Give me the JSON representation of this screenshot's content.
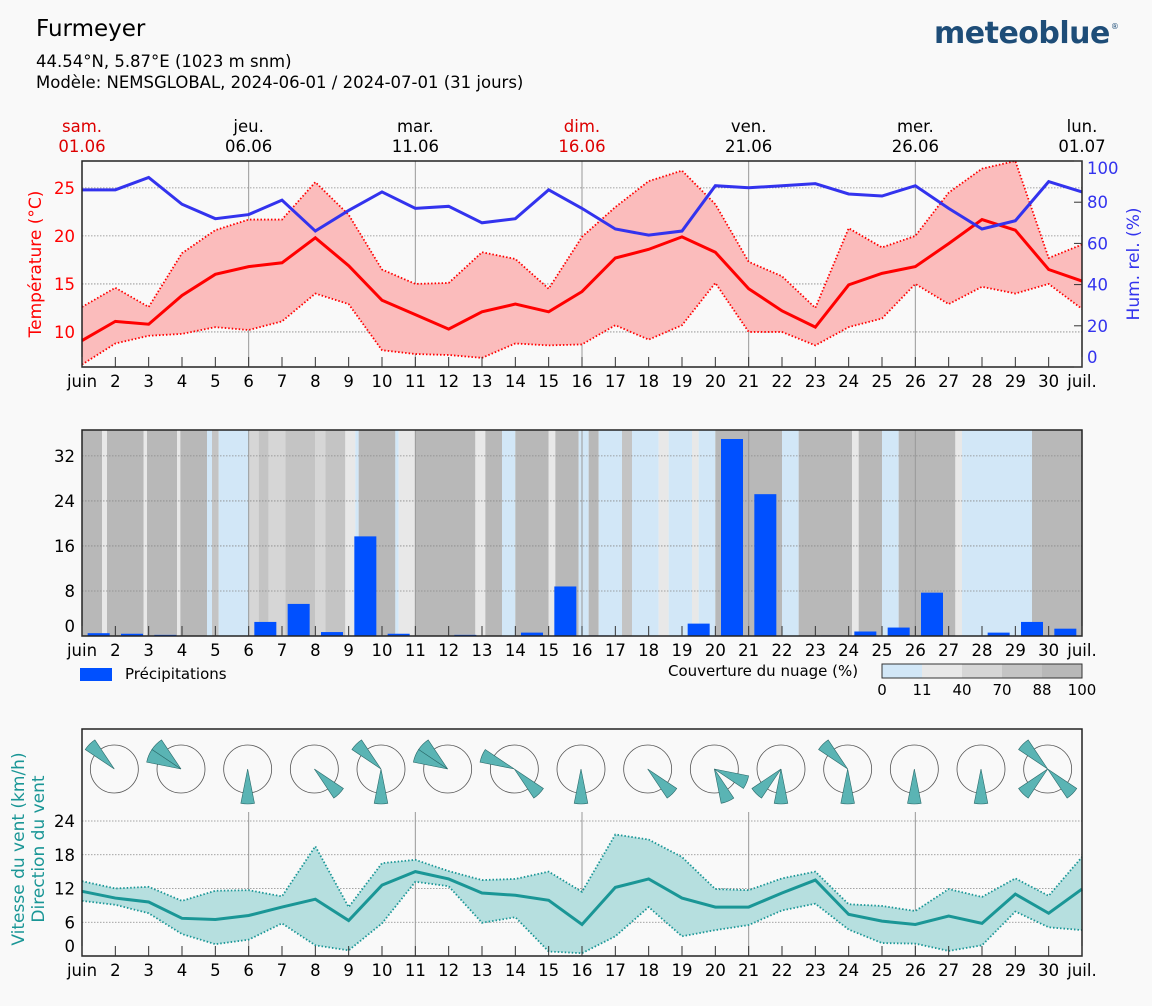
{
  "header": {
    "title": "Furmeyer",
    "coords": "44.54°N, 5.87°E (1023 m snm)",
    "model": "Modèle: NEMSGLOBAL, 2024-06-01 / 2024-07-01 (31 jours)",
    "logo": "meteoblue",
    "logo_mark": "®"
  },
  "colors": {
    "temp": "#ff0000",
    "temp_band": "#fbbcbc",
    "humidity": "#3333ee",
    "precip": "#0050ff",
    "wind": "#1a9696",
    "wind_band": "#b6dfdf",
    "wind_rose": "#5ab4b4",
    "weekend": "#dd0000",
    "cloud_classes": [
      "#d2e7f7",
      "#e8e8e8",
      "#d6d6d6",
      "#c4c4c4",
      "#b8b8b8"
    ]
  },
  "top_dates": [
    {
      "weekday": "sam.",
      "date": "01.06",
      "day": 1,
      "weekend": true
    },
    {
      "weekday": "jeu.",
      "date": "06.06",
      "day": 6,
      "weekend": false
    },
    {
      "weekday": "mar.",
      "date": "11.06",
      "day": 11,
      "weekend": false
    },
    {
      "weekday": "dim.",
      "date": "16.06",
      "day": 16,
      "weekend": true
    },
    {
      "weekday": "ven.",
      "date": "21.06",
      "day": 21,
      "weekend": false
    },
    {
      "weekday": "mer.",
      "date": "26.06",
      "day": 26,
      "weekend": false
    },
    {
      "weekday": "lun.",
      "date": "01.07",
      "day": 31,
      "weekend": false
    }
  ],
  "legends": {
    "precip": "Précipitations",
    "cloud": "Couverture du nuage (%)",
    "cloud_ticks": [
      "0",
      "11",
      "40",
      "70",
      "88",
      "100"
    ]
  },
  "chart_data": [
    {
      "type": "line",
      "title": "Température et humidité",
      "x_tick_labels": [
        "juin",
        "2",
        "3",
        "4",
        "5",
        "6",
        "7",
        "8",
        "9",
        "10",
        "11",
        "12",
        "13",
        "14",
        "15",
        "16",
        "17",
        "18",
        "19",
        "20",
        "21",
        "22",
        "23",
        "24",
        "25",
        "26",
        "27",
        "28",
        "29",
        "30",
        "juil."
      ],
      "x": [
        1,
        2,
        3,
        4,
        5,
        6,
        7,
        8,
        9,
        10,
        11,
        12,
        13,
        14,
        15,
        16,
        17,
        18,
        19,
        20,
        21,
        22,
        23,
        24,
        25,
        26,
        27,
        28,
        29,
        30,
        31
      ],
      "ylabel": "Température (°C)",
      "ylabel_right": "Hum. rel. (%)",
      "ylim": [
        6.35,
        27.8
      ],
      "ylim_right": [
        0,
        100
      ],
      "yticks": [
        10,
        15,
        20,
        25
      ],
      "yticks_right": [
        0,
        20,
        40,
        60,
        80,
        100
      ],
      "grid": true,
      "series": [
        {
          "name": "Température moyenne",
          "axis": "left",
          "values": [
            9.1,
            11.1,
            10.8,
            13.8,
            16.0,
            16.8,
            17.2,
            19.8,
            16.9,
            13.3,
            11.8,
            10.3,
            12.1,
            12.9,
            12.1,
            14.2,
            17.7,
            18.6,
            19.9,
            18.3,
            14.5,
            12.2,
            10.5,
            14.9,
            16.1,
            16.8,
            19.2,
            21.7,
            20.6,
            16.5,
            15.3
          ]
        },
        {
          "name": "Température max",
          "axis": "left",
          "values": [
            12.6,
            14.6,
            12.6,
            18.2,
            20.6,
            21.7,
            21.7,
            25.6,
            22.2,
            16.5,
            15.0,
            15.1,
            18.3,
            17.6,
            14.5,
            19.9,
            23.0,
            25.7,
            26.8,
            23.3,
            17.3,
            15.8,
            12.5,
            20.8,
            18.8,
            20.0,
            24.5,
            27.0,
            27.8,
            17.7,
            19.1
          ]
        },
        {
          "name": "Température min",
          "axis": "left",
          "values": [
            6.6,
            8.8,
            9.6,
            9.8,
            10.5,
            10.2,
            11.1,
            14.0,
            12.9,
            8.1,
            7.7,
            7.6,
            7.3,
            8.8,
            8.6,
            8.7,
            10.7,
            9.2,
            10.7,
            15.1,
            10.0,
            10.0,
            8.6,
            10.5,
            11.4,
            15.0,
            12.9,
            14.7,
            14.0,
            15.0,
            12.4
          ]
        },
        {
          "name": "Humidité relative",
          "axis": "right",
          "values": [
            86,
            86,
            92,
            79,
            72,
            74,
            81,
            66,
            76,
            85,
            77,
            78,
            70,
            72,
            86,
            77,
            67,
            64,
            66,
            88,
            87,
            88,
            89,
            84,
            83,
            88,
            77,
            67,
            71,
            90,
            85
          ]
        }
      ]
    },
    {
      "type": "bar",
      "title": "Précipitations et couverture nuageuse",
      "x_tick_labels": [
        "juin",
        "2",
        "3",
        "4",
        "5",
        "6",
        "7",
        "8",
        "9",
        "10",
        "11",
        "12",
        "13",
        "14",
        "15",
        "16",
        "17",
        "18",
        "19",
        "20",
        "21",
        "22",
        "23",
        "24",
        "25",
        "26",
        "27",
        "28",
        "29",
        "30",
        "juil."
      ],
      "categories": [
        1,
        2,
        3,
        4,
        5,
        6,
        7,
        8,
        9,
        10,
        11,
        12,
        13,
        14,
        15,
        16,
        17,
        18,
        19,
        20,
        21,
        22,
        23,
        24,
        25,
        26,
        27,
        28,
        29,
        30
      ],
      "ylabel": "Précipitations (mm)",
      "ylim": [
        0,
        36.6
      ],
      "yticks": [
        0,
        8,
        16,
        24,
        32
      ],
      "grid": true,
      "series": [
        {
          "name": "Précipitations",
          "values": [
            0.5,
            0.4,
            0.2,
            0,
            0,
            2.5,
            5.7,
            0.7,
            17.7,
            0.4,
            0,
            0.2,
            0,
            0.6,
            8.8,
            0.1,
            0,
            0,
            2.2,
            35.0,
            25.2,
            0,
            0.1,
            0.8,
            1.5,
            7.7,
            0,
            0.6,
            2.5,
            1.3
          ]
        }
      ],
      "cloud_cover_segments": [
        [
          1.0,
          1.6,
          4
        ],
        [
          1.6,
          1.75,
          1
        ],
        [
          1.75,
          2.85,
          4
        ],
        [
          2.85,
          2.95,
          1
        ],
        [
          2.95,
          3.85,
          4
        ],
        [
          3.85,
          3.95,
          1
        ],
        [
          3.95,
          4.75,
          4
        ],
        [
          4.75,
          4.9,
          0
        ],
        [
          4.9,
          5.1,
          3
        ],
        [
          5.1,
          6.0,
          0
        ],
        [
          6.0,
          6.3,
          2
        ],
        [
          6.3,
          6.6,
          3
        ],
        [
          6.6,
          7.1,
          2
        ],
        [
          7.1,
          8.0,
          3
        ],
        [
          8.0,
          8.3,
          2
        ],
        [
          8.3,
          8.9,
          3
        ],
        [
          8.9,
          9.2,
          1
        ],
        [
          9.2,
          9.3,
          0
        ],
        [
          9.3,
          10.4,
          4
        ],
        [
          10.4,
          10.5,
          0
        ],
        [
          10.5,
          11.0,
          1
        ],
        [
          11.0,
          12.8,
          4
        ],
        [
          12.8,
          13.1,
          1
        ],
        [
          13.1,
          13.6,
          4
        ],
        [
          13.6,
          14.0,
          0
        ],
        [
          14.0,
          15.0,
          4
        ],
        [
          15.0,
          15.2,
          1
        ],
        [
          15.2,
          15.9,
          4
        ],
        [
          15.9,
          16.2,
          0
        ],
        [
          16.2,
          16.5,
          4
        ],
        [
          16.5,
          17.2,
          0
        ],
        [
          17.2,
          17.5,
          3
        ],
        [
          17.5,
          18.3,
          0
        ],
        [
          18.3,
          18.6,
          1
        ],
        [
          18.6,
          19.3,
          0
        ],
        [
          19.3,
          19.5,
          1
        ],
        [
          19.5,
          20.0,
          0
        ],
        [
          20.0,
          22.0,
          4
        ],
        [
          22.0,
          22.5,
          0
        ],
        [
          22.5,
          24.1,
          4
        ],
        [
          24.1,
          24.3,
          1
        ],
        [
          24.3,
          25.0,
          4
        ],
        [
          25.0,
          25.5,
          0
        ],
        [
          25.5,
          27.2,
          4
        ],
        [
          27.2,
          27.4,
          1
        ],
        [
          27.4,
          29.5,
          0
        ],
        [
          29.5,
          31.0,
          4
        ]
      ],
      "cloud_cover_classes_pct": [
        "0-11",
        "11-40",
        "40-70",
        "70-88",
        "88-100"
      ]
    },
    {
      "type": "line",
      "title": "Vent",
      "x_tick_labels": [
        "juin",
        "2",
        "3",
        "4",
        "5",
        "6",
        "7",
        "8",
        "9",
        "10",
        "11",
        "12",
        "13",
        "14",
        "15",
        "16",
        "17",
        "18",
        "19",
        "20",
        "21",
        "22",
        "23",
        "24",
        "25",
        "26",
        "27",
        "28",
        "29",
        "30",
        "juil."
      ],
      "x": [
        1,
        2,
        3,
        4,
        5,
        6,
        7,
        8,
        9,
        10,
        11,
        12,
        13,
        14,
        15,
        16,
        17,
        18,
        19,
        20,
        21,
        22,
        23,
        24,
        25,
        26,
        27,
        28,
        29,
        30,
        31
      ],
      "ylabel": "Vitesse du vent (km/h)",
      "ylabel2": "Direction du vent",
      "ylim": [
        0,
        25.6
      ],
      "yticks": [
        0,
        6,
        12,
        18,
        24
      ],
      "grid": true,
      "series": [
        {
          "name": "Vitesse moyenne",
          "values": [
            11.5,
            10.3,
            9.6,
            6.7,
            6.5,
            7.2,
            8.7,
            10.1,
            6.3,
            12.6,
            15.0,
            13.7,
            11.2,
            10.8,
            9.9,
            5.6,
            12.2,
            13.7,
            10.3,
            8.7,
            8.7,
            11.2,
            13.5,
            7.4,
            6.2,
            5.6,
            7.1,
            5.8,
            11.0,
            7.6,
            11.9
          ]
        },
        {
          "name": "Vitesse max",
          "values": [
            13.3,
            12.0,
            12.3,
            9.8,
            11.6,
            11.7,
            10.6,
            19.5,
            8.7,
            16.5,
            17.1,
            15.1,
            13.5,
            13.7,
            15.0,
            11.4,
            21.6,
            20.7,
            17.6,
            11.9,
            11.7,
            13.8,
            15.0,
            9.2,
            8.9,
            8.0,
            11.9,
            10.5,
            13.8,
            10.7,
            17.6
          ]
        },
        {
          "name": "Vitesse min",
          "values": [
            9.8,
            9.1,
            7.6,
            3.9,
            2.1,
            2.9,
            5.8,
            1.9,
            1.0,
            5.8,
            13.2,
            12.4,
            5.9,
            6.9,
            0.8,
            0.5,
            3.5,
            8.7,
            3.5,
            4.6,
            5.5,
            8.1,
            9.3,
            4.7,
            2.3,
            2.2,
            0.9,
            1.9,
            7.9,
            5.1,
            4.6
          ]
        }
      ],
      "wind_roses": [
        {
          "center_day": 2,
          "sectors": [
            "NW"
          ]
        },
        {
          "center_day": 4,
          "sectors": [
            "NW",
            "WNW"
          ]
        },
        {
          "center_day": 6,
          "sectors": [
            "S"
          ]
        },
        {
          "center_day": 8,
          "sectors": [
            "SE"
          ]
        },
        {
          "center_day": 10,
          "sectors": [
            "NW",
            "S"
          ]
        },
        {
          "center_day": 12,
          "sectors": [
            "NW",
            "WNW"
          ]
        },
        {
          "center_day": 14,
          "sectors": [
            "WNW",
            "SE"
          ]
        },
        {
          "center_day": 16,
          "sectors": [
            "S"
          ]
        },
        {
          "center_day": 18,
          "sectors": [
            "SE"
          ]
        },
        {
          "center_day": 20,
          "sectors": [
            "ESE",
            "SSE"
          ]
        },
        {
          "center_day": 22,
          "sectors": [
            "SW",
            "S"
          ]
        },
        {
          "center_day": 24,
          "sectors": [
            "NW",
            "S"
          ]
        },
        {
          "center_day": 26,
          "sectors": [
            "S"
          ]
        },
        {
          "center_day": 28,
          "sectors": [
            "S"
          ]
        },
        {
          "center_day": 30,
          "sectors": [
            "NW",
            "SW",
            "SE"
          ]
        }
      ]
    }
  ]
}
